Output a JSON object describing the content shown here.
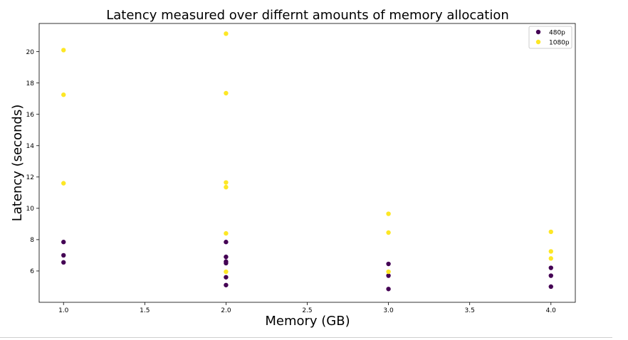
{
  "chart_data": {
    "type": "scatter",
    "title": "Latency measured over differnt amounts of memory allocation",
    "xlabel": "Memory (GB)",
    "ylabel": "Latency (seconds)",
    "xlim": [
      0.85,
      4.15
    ],
    "ylim": [
      4.0,
      21.8
    ],
    "xticks": [
      {
        "value": 1.0,
        "label": "1.0"
      },
      {
        "value": 1.5,
        "label": "1.5"
      },
      {
        "value": 2.0,
        "label": "2.0"
      },
      {
        "value": 2.5,
        "label": "2.5"
      },
      {
        "value": 3.0,
        "label": "3.0"
      },
      {
        "value": 3.5,
        "label": "3.5"
      },
      {
        "value": 4.0,
        "label": "4.0"
      }
    ],
    "yticks": [
      {
        "value": 6,
        "label": "6"
      },
      {
        "value": 8,
        "label": "8"
      },
      {
        "value": 10,
        "label": "10"
      },
      {
        "value": 12,
        "label": "12"
      },
      {
        "value": 14,
        "label": "14"
      },
      {
        "value": 16,
        "label": "16"
      },
      {
        "value": 18,
        "label": "18"
      },
      {
        "value": 20,
        "label": "20"
      }
    ],
    "grid": false,
    "legend_position": "top-right",
    "series": [
      {
        "name": "480p",
        "color": "#440154",
        "points": [
          {
            "x": 1.0,
            "y": 7.85
          },
          {
            "x": 1.0,
            "y": 7.0
          },
          {
            "x": 1.0,
            "y": 6.55
          },
          {
            "x": 2.0,
            "y": 7.85
          },
          {
            "x": 2.0,
            "y": 6.9
          },
          {
            "x": 2.0,
            "y": 6.6
          },
          {
            "x": 2.0,
            "y": 6.5
          },
          {
            "x": 2.0,
            "y": 5.6
          },
          {
            "x": 2.0,
            "y": 5.1
          },
          {
            "x": 3.0,
            "y": 6.45
          },
          {
            "x": 3.0,
            "y": 5.7
          },
          {
            "x": 3.0,
            "y": 4.85
          },
          {
            "x": 4.0,
            "y": 6.2
          },
          {
            "x": 4.0,
            "y": 5.7
          },
          {
            "x": 4.0,
            "y": 5.0
          }
        ]
      },
      {
        "name": "1080p",
        "color": "#fde725",
        "points": [
          {
            "x": 1.0,
            "y": 20.1
          },
          {
            "x": 1.0,
            "y": 17.25
          },
          {
            "x": 1.0,
            "y": 11.6
          },
          {
            "x": 2.0,
            "y": 21.15
          },
          {
            "x": 2.0,
            "y": 17.35
          },
          {
            "x": 2.0,
            "y": 11.65
          },
          {
            "x": 2.0,
            "y": 11.35
          },
          {
            "x": 2.0,
            "y": 8.4
          },
          {
            "x": 2.0,
            "y": 5.95
          },
          {
            "x": 3.0,
            "y": 9.65
          },
          {
            "x": 3.0,
            "y": 8.45
          },
          {
            "x": 3.0,
            "y": 5.95
          },
          {
            "x": 4.0,
            "y": 8.5
          },
          {
            "x": 4.0,
            "y": 7.25
          },
          {
            "x": 4.0,
            "y": 6.8
          }
        ]
      }
    ]
  }
}
